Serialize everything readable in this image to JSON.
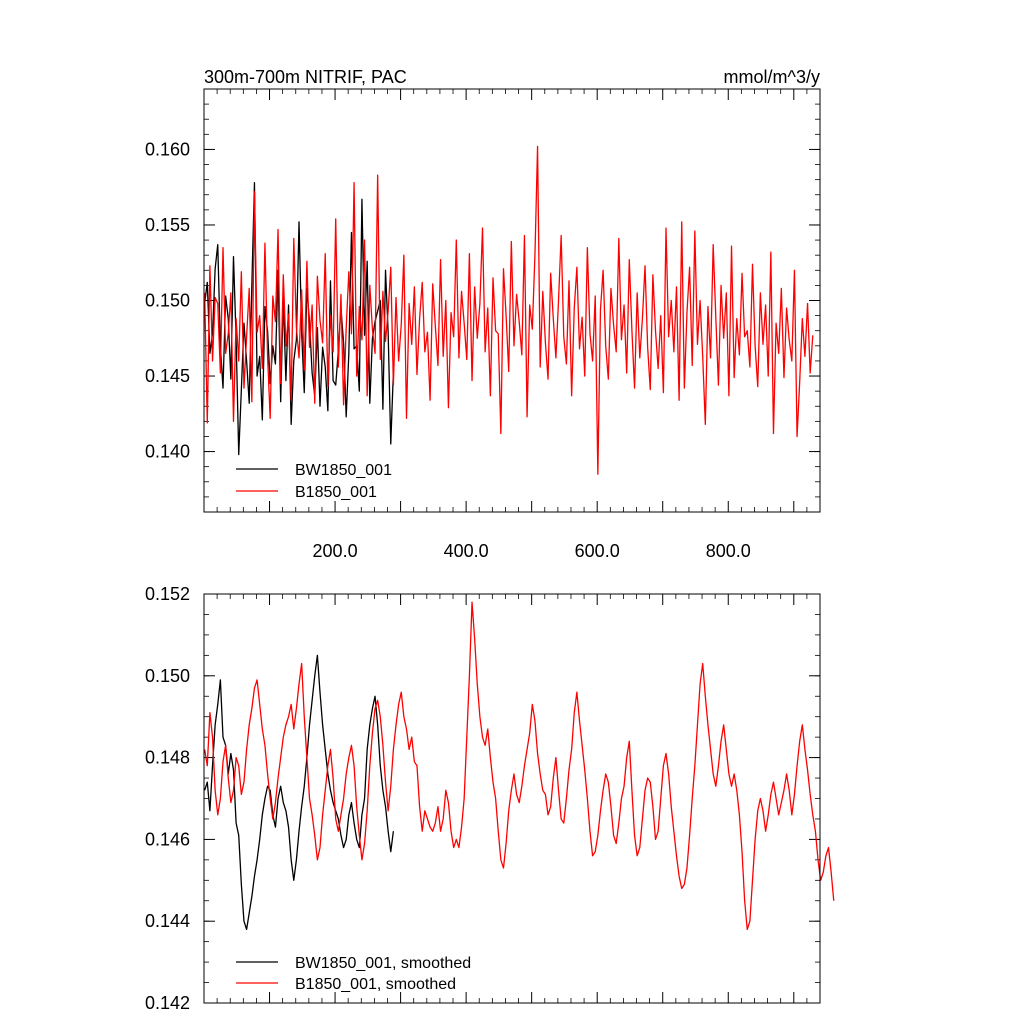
{
  "colors": {
    "series_a": "#000000",
    "series_b": "#ff0000",
    "axes": "#000000",
    "background": "#ffffff"
  },
  "chart_data": [
    {
      "type": "line",
      "title_left": "300m-700m NITRIF, PAC",
      "title_right": "mmol/m^3/y",
      "xlim": [
        0,
        940
      ],
      "ylim": [
        0.136,
        0.164
      ],
      "xticks": [
        200,
        400,
        600,
        800
      ],
      "xtick_labels": [
        "200.0",
        "400.0",
        "600.0",
        "800.0"
      ],
      "yticks": [
        0.14,
        0.145,
        0.15,
        0.155,
        0.16
      ],
      "ytick_labels": [
        "0.140",
        "0.145",
        "0.150",
        "0.155",
        "0.160"
      ],
      "legend_position": "bottom-left",
      "series": [
        {
          "name": "BW1850_001",
          "color": "#000000",
          "x_start": 1,
          "x_step": 4,
          "values": [
            0.1498,
            0.1512,
            0.1465,
            0.1478,
            0.1521,
            0.1537,
            0.147,
            0.1442,
            0.1503,
            0.1488,
            0.1448,
            0.1529,
            0.1475,
            0.1398,
            0.1441,
            0.1485,
            0.146,
            0.1432,
            0.151,
            0.1578,
            0.145,
            0.1463,
            0.1421,
            0.1496,
            0.148,
            0.1445,
            0.147,
            0.1458,
            0.152,
            0.1433,
            0.1502,
            0.1447,
            0.1497,
            0.1418,
            0.146,
            0.1474,
            0.1552,
            0.1479,
            0.1439,
            0.1508,
            0.1486,
            0.1452,
            0.1437,
            0.1482,
            0.143,
            0.1469,
            0.1456,
            0.1427,
            0.1513,
            0.1447,
            0.1444,
            0.1467,
            0.1495,
            0.1472,
            0.1423,
            0.1465,
            0.1545,
            0.1468,
            0.147,
            0.144,
            0.1567,
            0.1477,
            0.1526,
            0.1432,
            0.1475,
            0.1486,
            0.1493,
            0.15,
            0.1428,
            0.152,
            0.1479,
            0.1405,
            0.1453
          ]
        },
        {
          "name": "B1850_001",
          "color": "#ff0000",
          "x_start": 1,
          "x_step": 4,
          "values": [
            0.1505,
            0.1419,
            0.1523,
            0.146,
            0.1502,
            0.1498,
            0.1452,
            0.1535,
            0.1465,
            0.1478,
            0.1505,
            0.142,
            0.1488,
            0.146,
            0.1519,
            0.1442,
            0.1476,
            0.1508,
            0.1433,
            0.1572,
            0.1479,
            0.149,
            0.1455,
            0.1538,
            0.1463,
            0.1422,
            0.1503,
            0.1486,
            0.1547,
            0.1445,
            0.1517,
            0.147,
            0.1491,
            0.1434,
            0.1541,
            0.1482,
            0.1462,
            0.1507,
            0.1454,
            0.1526,
            0.1469,
            0.1497,
            0.1432,
            0.1516,
            0.1487,
            0.1472,
            0.1531,
            0.1443,
            0.149,
            0.1466,
            0.1554,
            0.1456,
            0.1504,
            0.1431,
            0.1482,
            0.1519,
            0.1478,
            0.1578,
            0.145,
            0.1496,
            0.1474,
            0.154,
            0.1437,
            0.151,
            0.1481,
            0.1465,
            0.1583,
            0.1461,
            0.1506,
            0.1473,
            0.1493,
            0.1522,
            0.1444,
            0.1502,
            0.146,
            0.1484,
            0.153,
            0.1422,
            0.1498,
            0.1471,
            0.1509,
            0.1451,
            0.1488,
            0.1512,
            0.1466,
            0.1479,
            0.1434,
            0.1511,
            0.1483,
            0.1457,
            0.1527,
            0.1463,
            0.15,
            0.1429,
            0.1492,
            0.1476,
            0.154,
            0.1462,
            0.1506,
            0.1485,
            0.1461,
            0.1531,
            0.1447,
            0.1509,
            0.1475,
            0.1498,
            0.1548,
            0.1466,
            0.1495,
            0.1437,
            0.1515,
            0.148,
            0.1478,
            0.1412,
            0.1521,
            0.149,
            0.1453,
            0.1539,
            0.147,
            0.1504,
            0.1486,
            0.1464,
            0.1543,
            0.1423,
            0.1497,
            0.1481,
            0.153,
            0.1602,
            0.1456,
            0.1506,
            0.1472,
            0.1448,
            0.1518,
            0.1488,
            0.1462,
            0.15,
            0.1543,
            0.1476,
            0.1458,
            0.1513,
            0.1437,
            0.1495,
            0.1522,
            0.1468,
            0.1489,
            0.145,
            0.1535,
            0.1478,
            0.146,
            0.1503,
            0.1385,
            0.1494,
            0.152,
            0.147,
            0.1448,
            0.1508,
            0.1484,
            0.1466,
            0.1541,
            0.1474,
            0.1497,
            0.1452,
            0.1527,
            0.148,
            0.1442,
            0.1505,
            0.1462,
            0.1488,
            0.1523,
            0.1469,
            0.1441,
            0.1517,
            0.148,
            0.1455,
            0.149,
            0.1439,
            0.1548,
            0.1476,
            0.15,
            0.1466,
            0.1509,
            0.1434,
            0.1552,
            0.1442,
            0.1492,
            0.1522,
            0.1457,
            0.1546,
            0.1471,
            0.15,
            0.1463,
            0.1418,
            0.1496,
            0.1462,
            0.1537,
            0.1489,
            0.1444,
            0.151,
            0.1475,
            0.1505,
            0.1437,
            0.1536,
            0.1449,
            0.1488,
            0.1464,
            0.1518,
            0.1476,
            0.148,
            0.1456,
            0.1524,
            0.147,
            0.1443,
            0.1505,
            0.1471,
            0.1497,
            0.145,
            0.1532,
            0.1412,
            0.1485,
            0.1465,
            0.1508,
            0.1449,
            0.1495,
            0.1474,
            0.146,
            0.152,
            0.141,
            0.1446,
            0.1488,
            0.1463,
            0.1498,
            0.1452,
            0.1477
          ]
        }
      ]
    },
    {
      "type": "line",
      "xlim": [
        0,
        940
      ],
      "ylim": [
        0.142,
        0.152
      ],
      "yticks": [
        0.142,
        0.144,
        0.146,
        0.148,
        0.15,
        0.152
      ],
      "ytick_labels": [
        "0.142",
        "0.144",
        "0.146",
        "0.148",
        "0.150",
        "0.152"
      ],
      "legend_position": "bottom-left",
      "series": [
        {
          "name": "BW1850_001, smoothed",
          "color": "#000000",
          "x_start": 1,
          "x_step": 4,
          "values": [
            0.1472,
            0.1474,
            0.1467,
            0.1478,
            0.1488,
            0.1493,
            0.1499,
            0.1485,
            0.1483,
            0.1476,
            0.1481,
            0.1477,
            0.1464,
            0.1461,
            0.1449,
            0.144,
            0.1438,
            0.1442,
            0.1446,
            0.1451,
            0.1455,
            0.146,
            0.1466,
            0.147,
            0.1473,
            0.1472,
            0.1466,
            0.1463,
            0.147,
            0.1473,
            0.1469,
            0.1467,
            0.1463,
            0.1455,
            0.145,
            0.1455,
            0.1462,
            0.1468,
            0.1473,
            0.148,
            0.1488,
            0.1494,
            0.15,
            0.1505,
            0.1496,
            0.1488,
            0.1482,
            0.1476,
            0.1472,
            0.1469,
            0.1467,
            0.1465,
            0.1461,
            0.1458,
            0.146,
            0.1466,
            0.1469,
            0.1464,
            0.146,
            0.1458,
            0.1466,
            0.147,
            0.1482,
            0.1488,
            0.1492,
            0.1495,
            0.1488,
            0.1478,
            0.1472,
            0.1468,
            0.1462,
            0.1457,
            0.1462
          ]
        },
        {
          "name": "B1850_001, smoothed",
          "color": "#ff0000",
          "x_start": 1,
          "x_step": 4,
          "values": [
            0.1482,
            0.1478,
            0.1491,
            0.1485,
            0.1472,
            0.1466,
            0.147,
            0.1479,
            0.1483,
            0.1475,
            0.1469,
            0.1472,
            0.148,
            0.1478,
            0.1471,
            0.1474,
            0.1482,
            0.1488,
            0.1492,
            0.1497,
            0.1499,
            0.1493,
            0.1487,
            0.1483,
            0.1476,
            0.147,
            0.1465,
            0.1469,
            0.1475,
            0.148,
            0.1485,
            0.1488,
            0.149,
            0.1493,
            0.1487,
            0.1492,
            0.1498,
            0.1503,
            0.149,
            0.148,
            0.147,
            0.1466,
            0.1461,
            0.1455,
            0.1458,
            0.1466,
            0.1472,
            0.1478,
            0.1482,
            0.1475,
            0.1465,
            0.1462,
            0.1466,
            0.147,
            0.1476,
            0.148,
            0.1483,
            0.1478,
            0.1468,
            0.1461,
            0.1455,
            0.1459,
            0.1467,
            0.1478,
            0.1486,
            0.1492,
            0.1494,
            0.149,
            0.1483,
            0.1474,
            0.1467,
            0.1473,
            0.1482,
            0.1488,
            0.1493,
            0.1496,
            0.149,
            0.1487,
            0.1482,
            0.1485,
            0.1479,
            0.1478,
            0.1468,
            0.1462,
            0.1467,
            0.1465,
            0.1463,
            0.1462,
            0.1464,
            0.1468,
            0.1462,
            0.1465,
            0.1472,
            0.1469,
            0.1462,
            0.1458,
            0.146,
            0.1458,
            0.1463,
            0.147,
            0.1485,
            0.15,
            0.1518,
            0.1509,
            0.1498,
            0.149,
            0.1485,
            0.1483,
            0.1487,
            0.148,
            0.1474,
            0.147,
            0.1462,
            0.1455,
            0.1453,
            0.1459,
            0.1467,
            0.1472,
            0.1476,
            0.1471,
            0.1469,
            0.1473,
            0.1478,
            0.1482,
            0.1486,
            0.1493,
            0.1489,
            0.1481,
            0.1476,
            0.1472,
            0.1471,
            0.1466,
            0.1468,
            0.1475,
            0.148,
            0.1472,
            0.1465,
            0.1464,
            0.147,
            0.1477,
            0.1482,
            0.1491,
            0.1496,
            0.1489,
            0.1483,
            0.1477,
            0.147,
            0.1462,
            0.1456,
            0.1457,
            0.1461,
            0.1467,
            0.1472,
            0.1476,
            0.1474,
            0.1468,
            0.1461,
            0.1459,
            0.1464,
            0.147,
            0.1473,
            0.148,
            0.1484,
            0.1472,
            0.1461,
            0.1456,
            0.1458,
            0.1465,
            0.1472,
            0.1475,
            0.1474,
            0.1468,
            0.146,
            0.1462,
            0.147,
            0.1478,
            0.1481,
            0.1476,
            0.1468,
            0.1462,
            0.1456,
            0.1451,
            0.1448,
            0.1449,
            0.1453,
            0.1461,
            0.147,
            0.1478,
            0.1488,
            0.1498,
            0.1503,
            0.1495,
            0.1488,
            0.1482,
            0.1476,
            0.1473,
            0.1478,
            0.1484,
            0.1488,
            0.1482,
            0.1476,
            0.1473,
            0.1476,
            0.1472,
            0.1466,
            0.1457,
            0.1445,
            0.1438,
            0.144,
            0.145,
            0.146,
            0.1467,
            0.147,
            0.1467,
            0.1462,
            0.1466,
            0.1471,
            0.1474,
            0.147,
            0.1466,
            0.1469,
            0.1472,
            0.1476,
            0.1472,
            0.1466,
            0.1471,
            0.1478,
            0.1484,
            0.1488,
            0.1482,
            0.1477,
            0.1471,
            0.1466,
            0.1462,
            0.1455,
            0.145,
            0.1452,
            0.1456,
            0.1458,
            0.1452,
            0.1445
          ]
        }
      ]
    }
  ]
}
